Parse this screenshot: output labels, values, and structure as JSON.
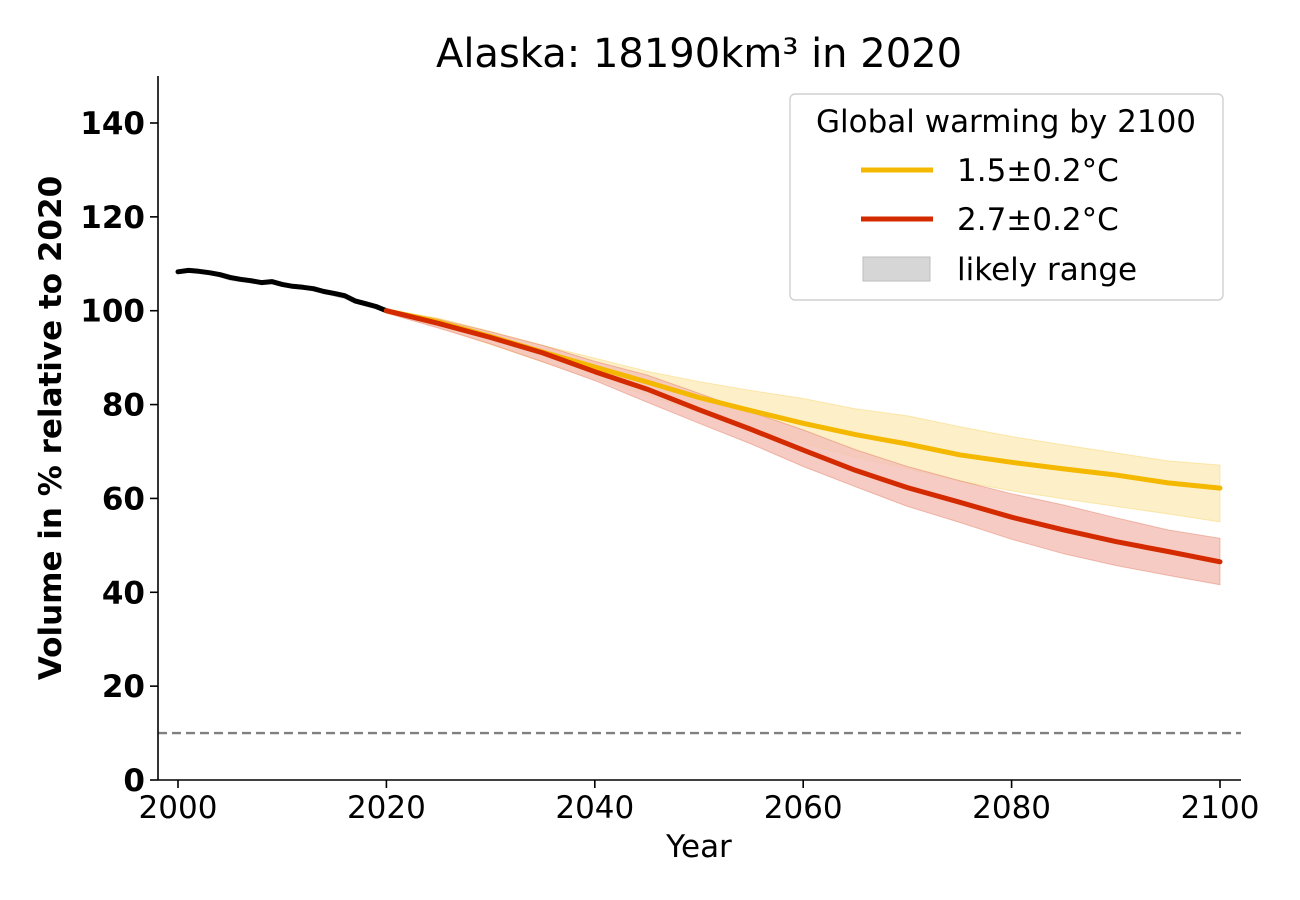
{
  "chart_data": {
    "type": "line",
    "title": "Alaska: 18190km³ in 2020",
    "xlabel": "Year",
    "ylabel": "Volume in % relative to 2020",
    "xlim": [
      1998,
      2102
    ],
    "ylim": [
      0,
      150
    ],
    "xticks": [
      "2000",
      "2020",
      "2040",
      "2060",
      "2080",
      "2100"
    ],
    "yticks": [
      "0",
      "20",
      "40",
      "60",
      "80",
      "100",
      "120",
      "140"
    ],
    "grid": false,
    "reference_line": {
      "y": 10,
      "style": "dashed",
      "color": "#808080"
    },
    "legend": {
      "title": "Global warming by 2100",
      "placement": "top-right",
      "entries": [
        {
          "label": "1.5±0.2°C",
          "color": "#f5b800",
          "kind": "line"
        },
        {
          "label": "2.7±0.2°C",
          "color": "#d42a00",
          "kind": "line"
        },
        {
          "label": "likely range",
          "color": "#d6d6d6",
          "kind": "patch"
        }
      ]
    },
    "series": [
      {
        "key": "historical",
        "color": "#000000",
        "x": [
          2000,
          2001,
          2002,
          2003,
          2004,
          2005,
          2006,
          2007,
          2008,
          2009,
          2010,
          2011,
          2012,
          2013,
          2014,
          2015,
          2016,
          2017,
          2018,
          2019,
          2020
        ],
        "y": [
          108.3,
          108.6,
          108.4,
          108.1,
          107.7,
          107.1,
          106.7,
          106.4,
          106.0,
          106.2,
          105.6,
          105.2,
          105.0,
          104.7,
          104.1,
          103.7,
          103.2,
          102.1,
          101.5,
          100.9,
          100.0
        ],
        "band_low": [
          108.0,
          108.2,
          108.0,
          107.6,
          107.1,
          106.4,
          106.1,
          105.8,
          105.5,
          105.6,
          105.1,
          104.7,
          104.5,
          104.1,
          103.6,
          103.0,
          102.5,
          101.5,
          100.9,
          100.3,
          99.6
        ],
        "band_high": [
          108.6,
          108.9,
          108.7,
          108.4,
          108.1,
          107.5,
          107.1,
          106.8,
          106.4,
          106.6,
          106.0,
          105.6,
          105.4,
          105.1,
          104.5,
          104.1,
          103.6,
          102.6,
          102.0,
          101.3,
          100.3
        ]
      },
      {
        "name": "1.5±0.2°C",
        "color": "#f5b800",
        "band_color": "#fdedc0",
        "x": [
          2020,
          2025,
          2030,
          2035,
          2040,
          2045,
          2050,
          2055,
          2060,
          2065,
          2070,
          2075,
          2080,
          2085,
          2090,
          2095,
          2100
        ],
        "y": [
          100.0,
          97.6,
          94.5,
          91.2,
          88.0,
          84.8,
          81.5,
          78.7,
          76.0,
          73.6,
          71.6,
          69.3,
          67.7,
          66.3,
          65.0,
          63.3,
          62.2
        ],
        "band_low": [
          99.5,
          96.6,
          92.8,
          89.1,
          85.5,
          82.0,
          78.2,
          75.0,
          71.8,
          68.8,
          66.3,
          63.7,
          61.6,
          59.9,
          58.3,
          56.7,
          55.0
        ],
        "band_high": [
          100.3,
          98.4,
          95.6,
          92.6,
          89.9,
          87.1,
          84.9,
          83.0,
          81.3,
          79.1,
          77.6,
          75.3,
          73.2,
          71.4,
          69.7,
          68.0,
          67.1
        ]
      },
      {
        "name": "2.7±0.2°C",
        "color": "#d42a00",
        "band_color": "#f3c2b8",
        "x": [
          2020,
          2025,
          2030,
          2035,
          2040,
          2045,
          2050,
          2055,
          2060,
          2065,
          2070,
          2075,
          2080,
          2085,
          2090,
          2095,
          2100
        ],
        "y": [
          100.0,
          97.3,
          94.3,
          91.0,
          87.0,
          83.3,
          78.9,
          74.7,
          70.3,
          66.0,
          62.3,
          59.2,
          56.0,
          53.3,
          50.8,
          48.7,
          46.5
        ],
        "band_low": [
          99.5,
          96.3,
          92.9,
          89.1,
          85.1,
          80.5,
          76.0,
          71.6,
          66.8,
          62.5,
          58.3,
          54.9,
          51.3,
          48.2,
          45.7,
          43.6,
          41.6
        ],
        "band_high": [
          100.3,
          98.2,
          95.5,
          92.6,
          89.2,
          86.3,
          82.4,
          78.4,
          74.6,
          70.4,
          66.8,
          63.8,
          61.0,
          58.6,
          55.9,
          53.3,
          51.5
        ]
      }
    ]
  }
}
